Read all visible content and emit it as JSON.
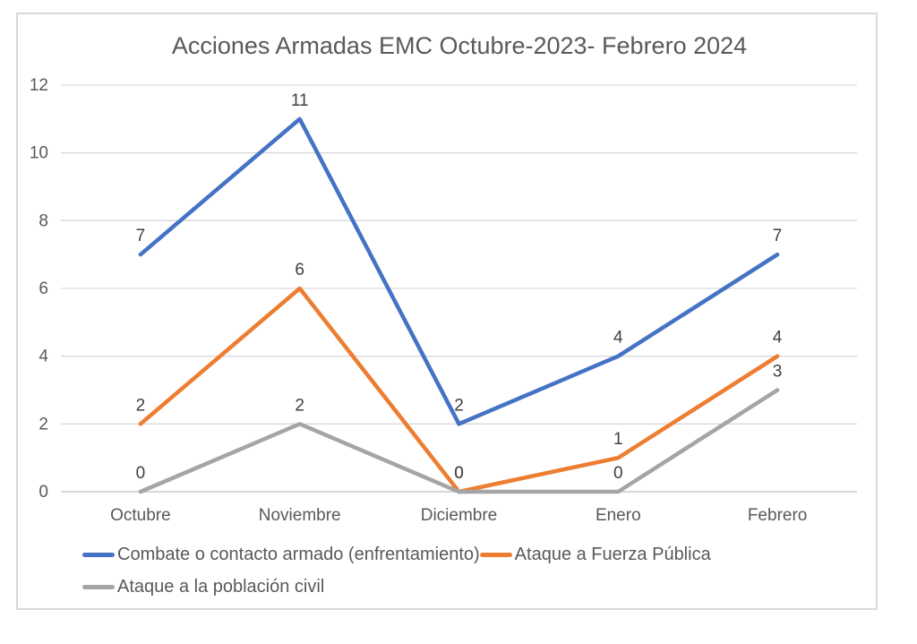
{
  "chart_data": {
    "type": "line",
    "title": "Acciones Armadas EMC Octubre-2023- Febrero 2024",
    "categories": [
      "Octubre",
      "Noviembre",
      "Diciembre",
      "Enero",
      "Febrero"
    ],
    "series": [
      {
        "name": "Combate o contacto armado (enfrentamiento)",
        "color": "#4472C4",
        "values": [
          7,
          11,
          2,
          4,
          7
        ]
      },
      {
        "name": "Ataque a Fuerza Pública",
        "color": "#ED7D31",
        "values": [
          2,
          6,
          0,
          1,
          4
        ]
      },
      {
        "name": "Ataque a la población civil",
        "color": "#A5A5A5",
        "values": [
          0,
          2,
          0,
          0,
          3
        ]
      }
    ],
    "y_ticks": [
      0,
      2,
      4,
      6,
      8,
      10,
      12
    ],
    "ylim": [
      0,
      12
    ],
    "grid": "horizontal",
    "data_labels": true,
    "legend_position": "bottom-left",
    "legend_rows": [
      [
        0,
        1
      ],
      [
        2
      ]
    ],
    "colors": {
      "axis_text": "#595959",
      "data_label_text": "#404040",
      "gridline": "#D9D9D9",
      "axis_line": "#BFBFBF",
      "frame_border": "#D9D9D9",
      "title_text": "#595959"
    }
  }
}
